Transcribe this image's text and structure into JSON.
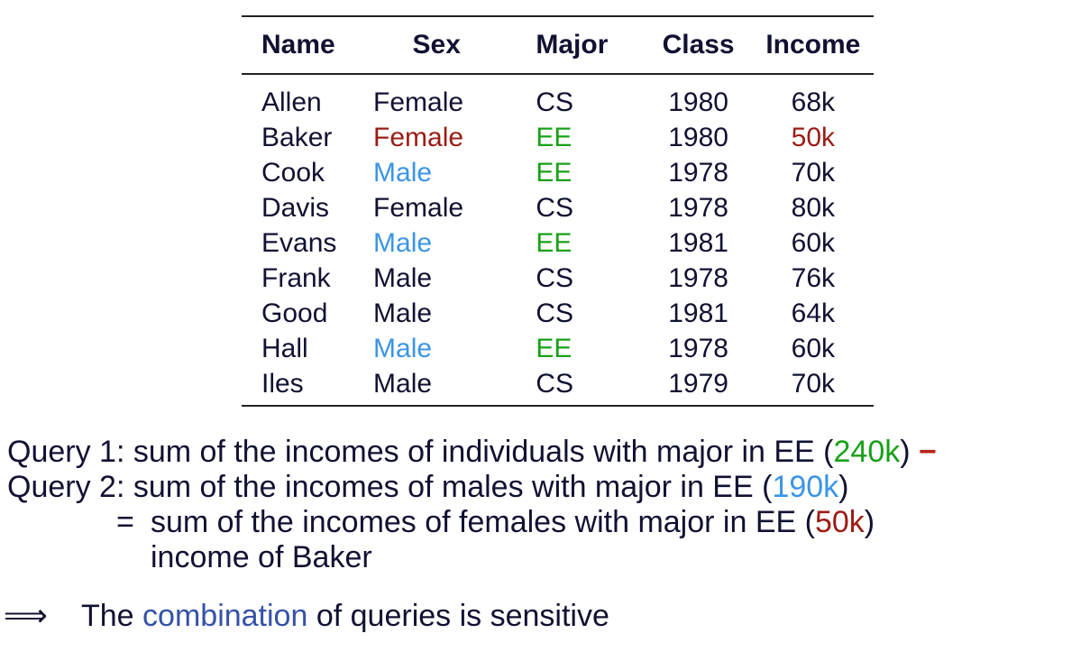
{
  "table": {
    "headers": [
      "Name",
      "Sex",
      "Major",
      "Class",
      "Income"
    ],
    "rows": [
      {
        "name": "Allen",
        "sex": "Female",
        "major": "CS",
        "class": "1980",
        "income": "68k"
      },
      {
        "name": "Baker",
        "sex": "Female",
        "major": "EE",
        "class": "1980",
        "income": "50k"
      },
      {
        "name": "Cook",
        "sex": "Male",
        "major": "EE",
        "class": "1978",
        "income": "70k"
      },
      {
        "name": "Davis",
        "sex": "Female",
        "major": "CS",
        "class": "1978",
        "income": "80k"
      },
      {
        "name": "Evans",
        "sex": "Male",
        "major": "EE",
        "class": "1981",
        "income": "60k"
      },
      {
        "name": "Frank",
        "sex": "Male",
        "major": "CS",
        "class": "1978",
        "income": "76k"
      },
      {
        "name": "Good",
        "sex": "Male",
        "major": "CS",
        "class": "1981",
        "income": "64k"
      },
      {
        "name": "Hall",
        "sex": "Male",
        "major": "EE",
        "class": "1978",
        "income": "60k"
      },
      {
        "name": "Iles",
        "sex": "Male",
        "major": "CS",
        "class": "1979",
        "income": "70k"
      }
    ]
  },
  "query1": {
    "text": "Query 1: sum of the incomes of individuals with major in EE (",
    "value": "240k",
    "close": ")",
    "operator": "−"
  },
  "query2": {
    "text": "Query 2: sum of the incomes of males with major in EE (",
    "value": "190k",
    "close": ")"
  },
  "equals": {
    "symbol": "=",
    "text": "sum of the incomes of females with major in EE (",
    "value": "50k",
    "close": ")"
  },
  "baker_line": "income of Baker",
  "conclusion": {
    "arrow": "⟹",
    "pre": "The ",
    "highlight": "combination",
    "post": " of queries is sensitive"
  },
  "colors": {
    "baker_highlight": "#9b1c14",
    "ee_highlight": "#18a018",
    "male_ee_highlight": "#3b94e6",
    "emphasis": "#3552a8"
  }
}
